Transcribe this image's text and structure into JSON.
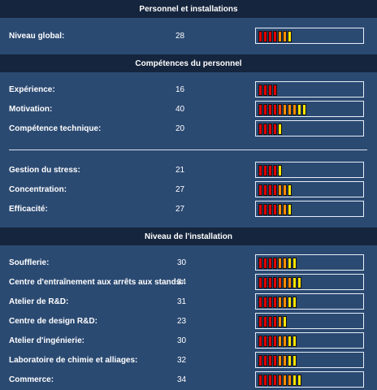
{
  "sections": [
    {
      "title": "Personnel et installations",
      "rows": [
        {
          "label": "Niveau global:",
          "value": "28",
          "level": 0.28
        }
      ]
    },
    {
      "title": "Compétences du personnel",
      "rows": [
        {
          "label": "Expérience:",
          "value": "16",
          "level": 0.16
        },
        {
          "label": "Motivation:",
          "value": "40",
          "level": 0.4
        },
        {
          "label": "Compétence technique:",
          "value": "20",
          "level": 0.2
        },
        {
          "label": "Gestion du stress:",
          "value": "21",
          "level": 0.21
        },
        {
          "label": "Concentration:",
          "value": "27",
          "level": 0.27
        },
        {
          "label": "Efficacité:",
          "value": "27",
          "level": 0.27
        }
      ]
    },
    {
      "title": "Niveau de l'installation",
      "rows": [
        {
          "label": "Soufflerie:",
          "value": "30",
          "level": 0.3
        },
        {
          "label": "Centre d'entraînement aux arrêts aux stands:",
          "value": "34",
          "level": 0.34
        },
        {
          "label": "Atelier de R&D:",
          "value": "31",
          "level": 0.31
        },
        {
          "label": "Centre de design R&D:",
          "value": "23",
          "level": 0.23
        },
        {
          "label": "Atelier d'ingénierie:",
          "value": "30",
          "level": 0.3
        },
        {
          "label": "Laboratoire de chimie et alliages:",
          "value": "32",
          "level": 0.32
        },
        {
          "label": "Commerce:",
          "value": "34",
          "level": 0.34
        }
      ]
    }
  ],
  "colors": {
    "low": "#e00000",
    "mid": "#ff8c00",
    "high": "#ffe600"
  }
}
